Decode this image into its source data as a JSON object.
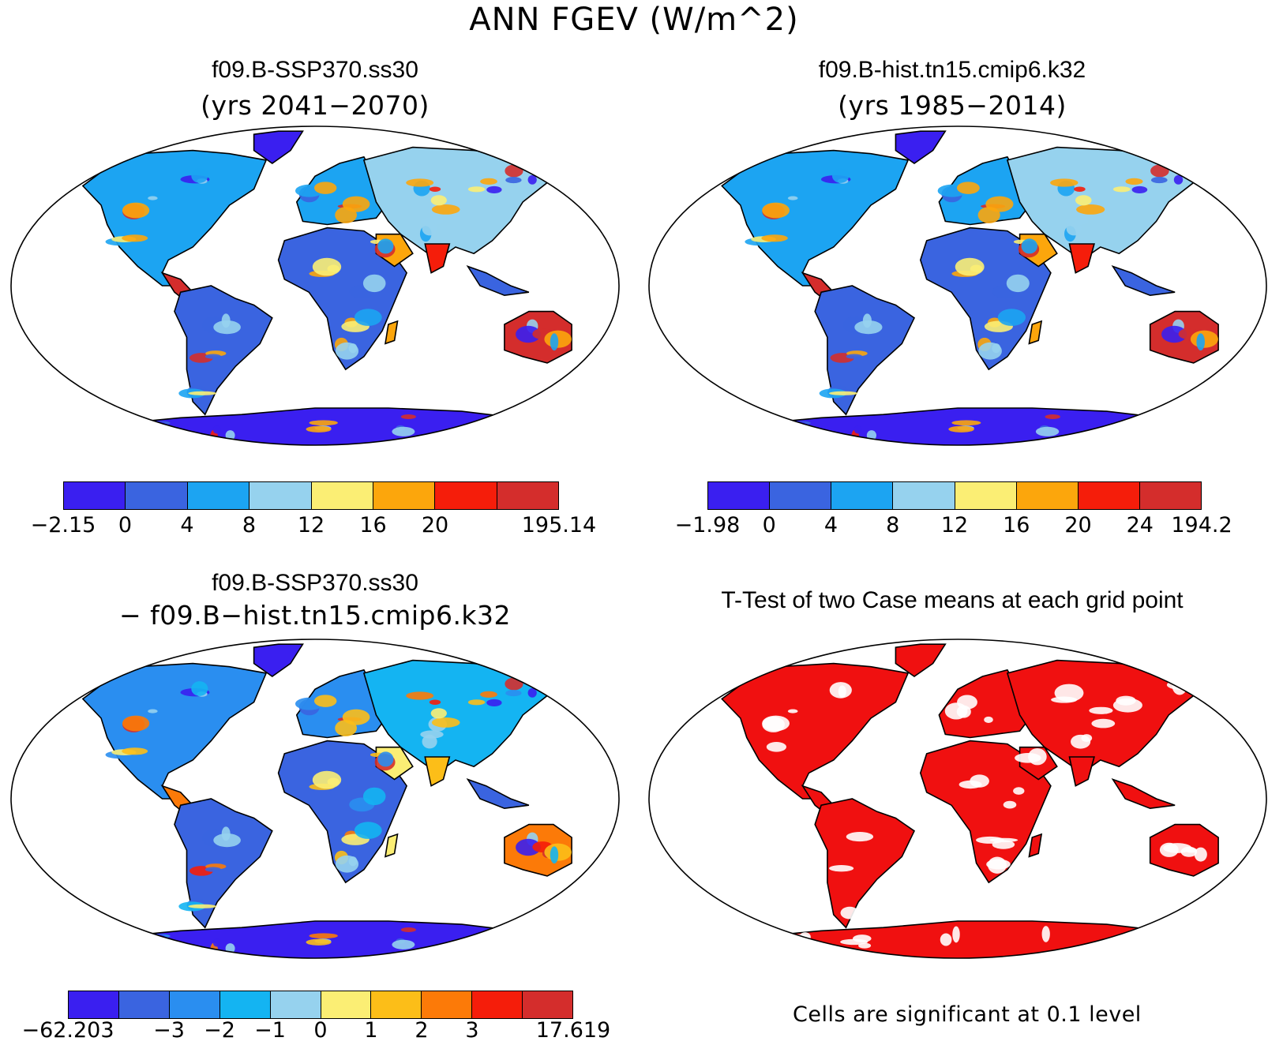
{
  "title": "ANN FGEV (W/m^2)",
  "panels": {
    "tl": {
      "title": "f09.B-SSP370.ss30",
      "subtitle": "(yrs 2041−2070)"
    },
    "tr": {
      "title": "f09.B-hist.tn15.cmip6.k32",
      "subtitle": "(yrs 1985−2014)"
    },
    "bl": {
      "title": "f09.B-SSP370.ss30",
      "subtitle": "− f09.B−hist.tn15.cmip6.k32"
    },
    "br": {
      "title": "T-Test of two Case means at each grid point",
      "note": "Cells are significant at 0.1 level"
    }
  },
  "colorbars": {
    "tl": {
      "colors": [
        "#3a1ff0",
        "#3a64e0",
        "#1ca4f2",
        "#96d2ee",
        "#fbee74",
        "#fca60c",
        "#f51d0a",
        "#d42d2c"
      ],
      "labels": [
        "−2.15",
        "0",
        "4",
        "8",
        "12",
        "16",
        "20",
        "",
        "195.14"
      ]
    },
    "tr": {
      "colors": [
        "#3a1ff0",
        "#3a64e0",
        "#1ca4f2",
        "#96d2ee",
        "#fbee74",
        "#fca60c",
        "#f51d0a",
        "#d42d2c"
      ],
      "labels": [
        "−1.98",
        "0",
        "4",
        "8",
        "12",
        "16",
        "20",
        "24",
        "194.2"
      ]
    },
    "bl": {
      "colors": [
        "#3a1ff0",
        "#3a64e0",
        "#2a8ef0",
        "#14b4f2",
        "#96d2ee",
        "#fbee74",
        "#fcbe18",
        "#fc7a08",
        "#f51d0a",
        "#d42d2c"
      ],
      "labels": [
        "−62.203",
        "",
        "−3",
        "−2",
        "−1",
        "0",
        "1",
        "2",
        "3",
        "",
        "17.619"
      ]
    }
  },
  "ttest_color": "#f01010"
}
